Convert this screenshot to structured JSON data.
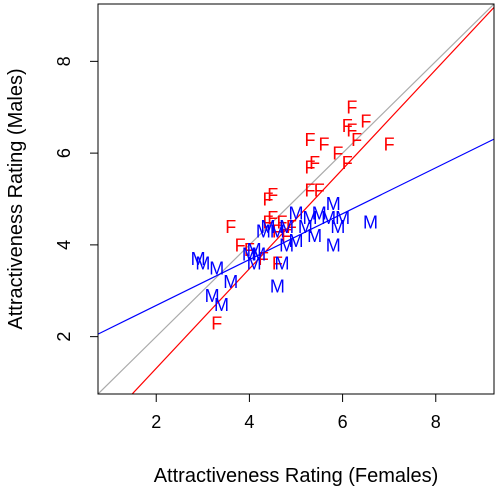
{
  "chart_data": {
    "type": "scatter",
    "xlabel": "Attractiveness Rating (Females)",
    "ylabel": "Attractiveness Rating (Males)",
    "xlim": [
      0.75,
      9.25
    ],
    "ylim": [
      0.75,
      9.25
    ],
    "x_ticks": [
      "2",
      "4",
      "6",
      "8"
    ],
    "y_ticks": [
      "2",
      "4",
      "6",
      "8"
    ],
    "grid": false,
    "series": [
      {
        "marker": "F",
        "color": "#ff0000",
        "points": [
          [
            6.2,
            7.0
          ],
          [
            6.5,
            6.7
          ],
          [
            6.1,
            6.6
          ],
          [
            6.2,
            6.5
          ],
          [
            5.3,
            6.3
          ],
          [
            5.6,
            6.2
          ],
          [
            6.3,
            6.3
          ],
          [
            7.0,
            6.2
          ],
          [
            5.9,
            6.0
          ],
          [
            5.4,
            5.8
          ],
          [
            5.3,
            5.7
          ],
          [
            6.1,
            5.8
          ],
          [
            5.3,
            5.2
          ],
          [
            5.5,
            5.2
          ],
          [
            4.5,
            5.1
          ],
          [
            4.4,
            5.0
          ],
          [
            4.5,
            4.6
          ],
          [
            4.4,
            4.5
          ],
          [
            4.7,
            4.5
          ],
          [
            4.6,
            4.3
          ],
          [
            4.9,
            4.4
          ],
          [
            4.8,
            4.2
          ],
          [
            3.6,
            4.4
          ],
          [
            3.8,
            4.0
          ],
          [
            4.0,
            3.9
          ],
          [
            4.3,
            3.7
          ],
          [
            4.6,
            3.6
          ],
          [
            3.3,
            2.3
          ]
        ]
      },
      {
        "marker": "M",
        "color": "#0000ff",
        "points": [
          [
            5.8,
            4.9
          ],
          [
            5.5,
            4.7
          ],
          [
            5.3,
            4.6
          ],
          [
            5.0,
            4.7
          ],
          [
            5.7,
            4.6
          ],
          [
            6.0,
            4.6
          ],
          [
            5.2,
            4.4
          ],
          [
            6.6,
            4.5
          ],
          [
            4.4,
            4.4
          ],
          [
            4.8,
            4.4
          ],
          [
            5.9,
            4.4
          ],
          [
            4.6,
            4.3
          ],
          [
            4.3,
            4.3
          ],
          [
            5.4,
            4.2
          ],
          [
            5.0,
            4.1
          ],
          [
            4.8,
            4.0
          ],
          [
            5.8,
            4.0
          ],
          [
            4.1,
            3.9
          ],
          [
            4.2,
            3.8
          ],
          [
            4.0,
            3.8
          ],
          [
            2.9,
            3.7
          ],
          [
            3.0,
            3.6
          ],
          [
            3.3,
            3.5
          ],
          [
            4.7,
            3.6
          ],
          [
            4.1,
            3.6
          ],
          [
            4.6,
            3.1
          ],
          [
            3.6,
            3.2
          ],
          [
            3.2,
            2.9
          ],
          [
            3.4,
            2.7
          ]
        ]
      }
    ],
    "lines": [
      {
        "color": "#ff0000",
        "intercept": -0.86,
        "slope": 1.085
      },
      {
        "color": "#aaaaaa",
        "intercept": 0.0,
        "slope": 1.0
      },
      {
        "color": "#0000ff",
        "intercept": 1.68,
        "slope": 0.5
      }
    ]
  }
}
